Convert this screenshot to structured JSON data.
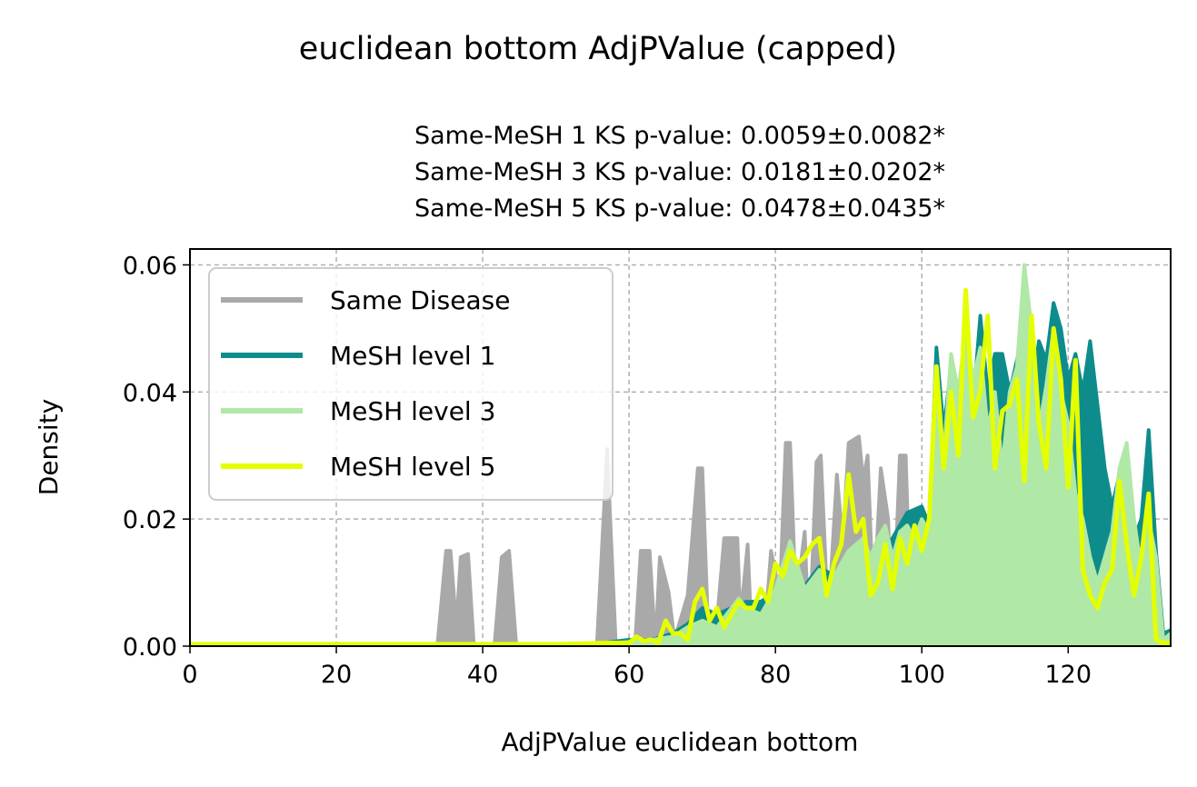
{
  "chart_data": {
    "type": "area",
    "title": "euclidean bottom AdjPValue (capped)",
    "subtitle_lines": [
      "Same-MeSH 1 KS p-value: 0.0059±0.0082*",
      "Same-MeSH 3 KS p-value: 0.0181±0.0202*",
      "Same-MeSH 5 KS p-value: 0.0478±0.0435*"
    ],
    "xlabel": "AdjPValue euclidean bottom",
    "ylabel": "Density",
    "xlim": [
      0,
      134
    ],
    "ylim": [
      0,
      0.0625
    ],
    "xticks": [
      0,
      20,
      40,
      60,
      80,
      100,
      120
    ],
    "yticks": [
      0.0,
      0.02,
      0.04,
      0.06
    ],
    "xtick_labels": [
      "0",
      "20",
      "40",
      "60",
      "80",
      "100",
      "120"
    ],
    "ytick_labels": [
      "0.00",
      "0.02",
      "0.04",
      "0.06"
    ],
    "grid": true,
    "legend_position": "upper-left",
    "series": [
      {
        "name": "Same Disease",
        "color": "#a9a9a9",
        "style": "filled",
        "points": [
          [
            0,
            0
          ],
          [
            33.8,
            0
          ],
          [
            35,
            0.015
          ],
          [
            35.6,
            0.015
          ],
          [
            36.4,
            0.003
          ],
          [
            37,
            0.014
          ],
          [
            38,
            0.0145
          ],
          [
            38.8,
            0
          ],
          [
            41.6,
            0
          ],
          [
            42.6,
            0.014
          ],
          [
            43.6,
            0.015
          ],
          [
            44.6,
            0
          ],
          [
            55.6,
            0
          ],
          [
            57,
            0.031
          ],
          [
            58.2,
            0
          ],
          [
            60.8,
            0
          ],
          [
            61.6,
            0.015
          ],
          [
            62.8,
            0.015
          ],
          [
            63.6,
            0
          ],
          [
            64.2,
            0.014
          ],
          [
            65.4,
            0.0085
          ],
          [
            66.2,
            0.001
          ],
          [
            68,
            0.008
          ],
          [
            69.4,
            0.028
          ],
          [
            70,
            0.028
          ],
          [
            70.8,
            0.003
          ],
          [
            72,
            0.004
          ],
          [
            73,
            0.017
          ],
          [
            74.8,
            0.017
          ],
          [
            75.2,
            0.004
          ],
          [
            76.2,
            0.016
          ],
          [
            76.8,
            0
          ],
          [
            77.8,
            0.005
          ],
          [
            78.4,
            0.0
          ],
          [
            79.4,
            0.015
          ],
          [
            80.6,
            0.008
          ],
          [
            81.4,
            0.032
          ],
          [
            82,
            0.032
          ],
          [
            82.8,
            0.007
          ],
          [
            84,
            0.018
          ],
          [
            84.6,
            0.0
          ],
          [
            85.6,
            0.029
          ],
          [
            86.2,
            0.03
          ],
          [
            87.2,
            0.004
          ],
          [
            88.4,
            0.027
          ],
          [
            89.2,
            0.016
          ],
          [
            90,
            0.032
          ],
          [
            91.4,
            0.033
          ],
          [
            92,
            0.026
          ],
          [
            92.6,
            0.03
          ],
          [
            93.4,
            0.006
          ],
          [
            94.4,
            0.028
          ],
          [
            95.4,
            0.02
          ],
          [
            96,
            0.001
          ],
          [
            97,
            0.03
          ],
          [
            97.8,
            0.03
          ],
          [
            98.4,
            0.008
          ],
          [
            99.6,
            0.0
          ],
          [
            100.4,
            0.0
          ],
          [
            101.2,
            0.015
          ],
          [
            102,
            0.042
          ],
          [
            102.6,
            0.016
          ],
          [
            103.4,
            0.008
          ],
          [
            104.2,
            0.037
          ],
          [
            105.4,
            0.038
          ],
          [
            106.2,
            0.021
          ],
          [
            107.2,
            0.0
          ],
          [
            108.2,
            0.0
          ],
          [
            109.4,
            0.03
          ],
          [
            110.4,
            0.046
          ],
          [
            111.4,
            0.027
          ],
          [
            112.4,
            0.0
          ],
          [
            113.2,
            0.035
          ],
          [
            114.4,
            0.042
          ],
          [
            115.2,
            0.018
          ],
          [
            116.4,
            0.0
          ],
          [
            117.4,
            0.036
          ],
          [
            118.4,
            0.042
          ],
          [
            119.2,
            0.017
          ],
          [
            120.2,
            0.004
          ],
          [
            121.4,
            0.032
          ],
          [
            122.6,
            0.021
          ],
          [
            123.6,
            0.005
          ],
          [
            124.4,
            0.002
          ],
          [
            125.4,
            0.0
          ],
          [
            126.2,
            0.0
          ],
          [
            127.4,
            0.0
          ],
          [
            128.4,
            0.0
          ],
          [
            129.4,
            0.0
          ],
          [
            130.4,
            0.0
          ],
          [
            134,
            0.0
          ]
        ]
      },
      {
        "name": "MeSH level 1",
        "color": "#0e8c8c",
        "style": "filled",
        "points": [
          [
            0,
            0.0003
          ],
          [
            55,
            0.0003
          ],
          [
            60,
            0.001
          ],
          [
            63,
            0.001
          ],
          [
            66,
            0.002
          ],
          [
            68,
            0.0035
          ],
          [
            70,
            0.006
          ],
          [
            72,
            0.005
          ],
          [
            74,
            0.006
          ],
          [
            76,
            0.007
          ],
          [
            78,
            0.007
          ],
          [
            80,
            0.0085
          ],
          [
            82,
            0.012
          ],
          [
            84,
            0.0095
          ],
          [
            86,
            0.0125
          ],
          [
            88,
            0.011
          ],
          [
            90,
            0.013
          ],
          [
            92,
            0.011
          ],
          [
            94,
            0.014
          ],
          [
            96,
            0.017
          ],
          [
            98,
            0.021
          ],
          [
            100,
            0.022
          ],
          [
            101,
            0.019
          ],
          [
            102,
            0.047
          ],
          [
            103,
            0.034
          ],
          [
            104,
            0.044
          ],
          [
            105,
            0.035
          ],
          [
            106,
            0.048
          ],
          [
            107,
            0.038
          ],
          [
            108,
            0.052
          ],
          [
            109,
            0.04
          ],
          [
            110,
            0.046
          ],
          [
            111,
            0.046
          ],
          [
            112,
            0.04
          ],
          [
            113,
            0.045
          ],
          [
            114,
            0.05
          ],
          [
            115,
            0.04
          ],
          [
            116,
            0.048
          ],
          [
            117,
            0.045
          ],
          [
            118,
            0.054
          ],
          [
            119,
            0.05
          ],
          [
            120,
            0.042
          ],
          [
            121,
            0.046
          ],
          [
            122,
            0.04
          ],
          [
            123,
            0.048
          ],
          [
            124,
            0.038
          ],
          [
            125,
            0.028
          ],
          [
            126,
            0.022
          ],
          [
            127,
            0.027
          ],
          [
            128,
            0.024
          ],
          [
            129,
            0.017
          ],
          [
            130,
            0.02
          ],
          [
            131,
            0.034
          ],
          [
            132,
            0.015
          ],
          [
            133,
            0.002
          ],
          [
            134,
            0.0025
          ]
        ]
      },
      {
        "name": "MeSH level 3",
        "color": "#b0e8a6",
        "style": "filled",
        "points": [
          [
            0,
            0.0003
          ],
          [
            55,
            0.0003
          ],
          [
            62,
            0.0008
          ],
          [
            66,
            0.0015
          ],
          [
            68,
            0.003
          ],
          [
            70,
            0.004
          ],
          [
            72,
            0.003
          ],
          [
            74,
            0.006
          ],
          [
            75,
            0.0075
          ],
          [
            76,
            0.006
          ],
          [
            78,
            0.005
          ],
          [
            80,
            0.009
          ],
          [
            82,
            0.0165
          ],
          [
            84,
            0.009
          ],
          [
            86,
            0.012
          ],
          [
            87,
            0.008
          ],
          [
            88,
            0.011
          ],
          [
            90,
            0.015
          ],
          [
            92,
            0.017
          ],
          [
            93,
            0.014
          ],
          [
            94,
            0.017
          ],
          [
            95,
            0.019
          ],
          [
            96,
            0.014
          ],
          [
            97,
            0.018
          ],
          [
            98,
            0.019
          ],
          [
            99,
            0.017
          ],
          [
            100,
            0.02
          ],
          [
            101,
            0.018
          ],
          [
            102,
            0.042
          ],
          [
            103,
            0.03
          ],
          [
            104,
            0.046
          ],
          [
            105,
            0.04
          ],
          [
            106,
            0.05
          ],
          [
            107,
            0.042
          ],
          [
            108,
            0.047
          ],
          [
            109,
            0.034
          ],
          [
            110,
            0.04
          ],
          [
            111,
            0.028
          ],
          [
            112,
            0.04
          ],
          [
            113,
            0.044
          ],
          [
            114,
            0.06
          ],
          [
            115,
            0.05
          ],
          [
            116,
            0.034
          ],
          [
            117,
            0.041
          ],
          [
            118,
            0.05
          ],
          [
            119,
            0.04
          ],
          [
            120,
            0.035
          ],
          [
            121,
            0.024
          ],
          [
            122,
            0.02
          ],
          [
            123,
            0.014
          ],
          [
            124,
            0.01
          ],
          [
            125,
            0.014
          ],
          [
            126,
            0.018
          ],
          [
            127,
            0.028
          ],
          [
            128,
            0.032
          ],
          [
            129,
            0.02
          ],
          [
            130,
            0.012
          ],
          [
            131,
            0.02
          ],
          [
            132,
            0.014
          ],
          [
            133,
            0.001
          ],
          [
            134,
            0.002
          ]
        ]
      },
      {
        "name": "MeSH level 5",
        "color": "#e4ff00",
        "style": "line",
        "points": [
          [
            0,
            0.0003
          ],
          [
            50,
            0.0003
          ],
          [
            57,
            0.0005
          ],
          [
            60,
            0.0005
          ],
          [
            61,
            0.0015
          ],
          [
            62,
            0.0008
          ],
          [
            63,
            0.001
          ],
          [
            64,
            0.0005
          ],
          [
            65,
            0.004
          ],
          [
            66,
            0.002
          ],
          [
            67,
            0.002
          ],
          [
            68,
            0.001
          ],
          [
            69,
            0.007
          ],
          [
            70,
            0.009
          ],
          [
            71,
            0.004
          ],
          [
            72,
            0.006
          ],
          [
            73,
            0.003
          ],
          [
            74,
            0.005
          ],
          [
            75,
            0.007
          ],
          [
            76,
            0.006
          ],
          [
            77,
            0.006
          ],
          [
            78,
            0.009
          ],
          [
            79,
            0.007
          ],
          [
            80,
            0.013
          ],
          [
            81,
            0.011
          ],
          [
            82,
            0.015
          ],
          [
            83,
            0.013
          ],
          [
            84,
            0.014
          ],
          [
            85,
            0.016
          ],
          [
            86,
            0.017
          ],
          [
            87,
            0.008
          ],
          [
            88,
            0.013
          ],
          [
            89,
            0.016
          ],
          [
            90,
            0.027
          ],
          [
            91,
            0.018
          ],
          [
            92,
            0.02
          ],
          [
            93,
            0.008
          ],
          [
            94,
            0.01
          ],
          [
            95,
            0.016
          ],
          [
            96,
            0.009
          ],
          [
            97,
            0.017
          ],
          [
            98,
            0.013
          ],
          [
            99,
            0.019
          ],
          [
            100,
            0.015
          ],
          [
            101,
            0.02
          ],
          [
            102,
            0.044
          ],
          [
            103,
            0.028
          ],
          [
            104,
            0.04
          ],
          [
            105,
            0.03
          ],
          [
            106,
            0.056
          ],
          [
            107,
            0.036
          ],
          [
            108,
            0.04
          ],
          [
            109,
            0.052
          ],
          [
            110,
            0.028
          ],
          [
            111,
            0.037
          ],
          [
            112,
            0.038
          ],
          [
            113,
            0.042
          ],
          [
            114,
            0.026
          ],
          [
            115,
            0.052
          ],
          [
            116,
            0.035
          ],
          [
            117,
            0.028
          ],
          [
            118,
            0.05
          ],
          [
            119,
            0.042
          ],
          [
            120,
            0.025
          ],
          [
            121,
            0.045
          ],
          [
            122,
            0.012
          ],
          [
            123,
            0.008
          ],
          [
            124,
            0.006
          ],
          [
            125,
            0.01
          ],
          [
            126,
            0.012
          ],
          [
            127,
            0.026
          ],
          [
            128,
            0.016
          ],
          [
            129,
            0.008
          ],
          [
            130,
            0.014
          ],
          [
            131,
            0.024
          ],
          [
            132,
            0.001
          ],
          [
            133,
            0.0005
          ],
          [
            134,
            0.0005
          ]
        ]
      }
    ]
  }
}
